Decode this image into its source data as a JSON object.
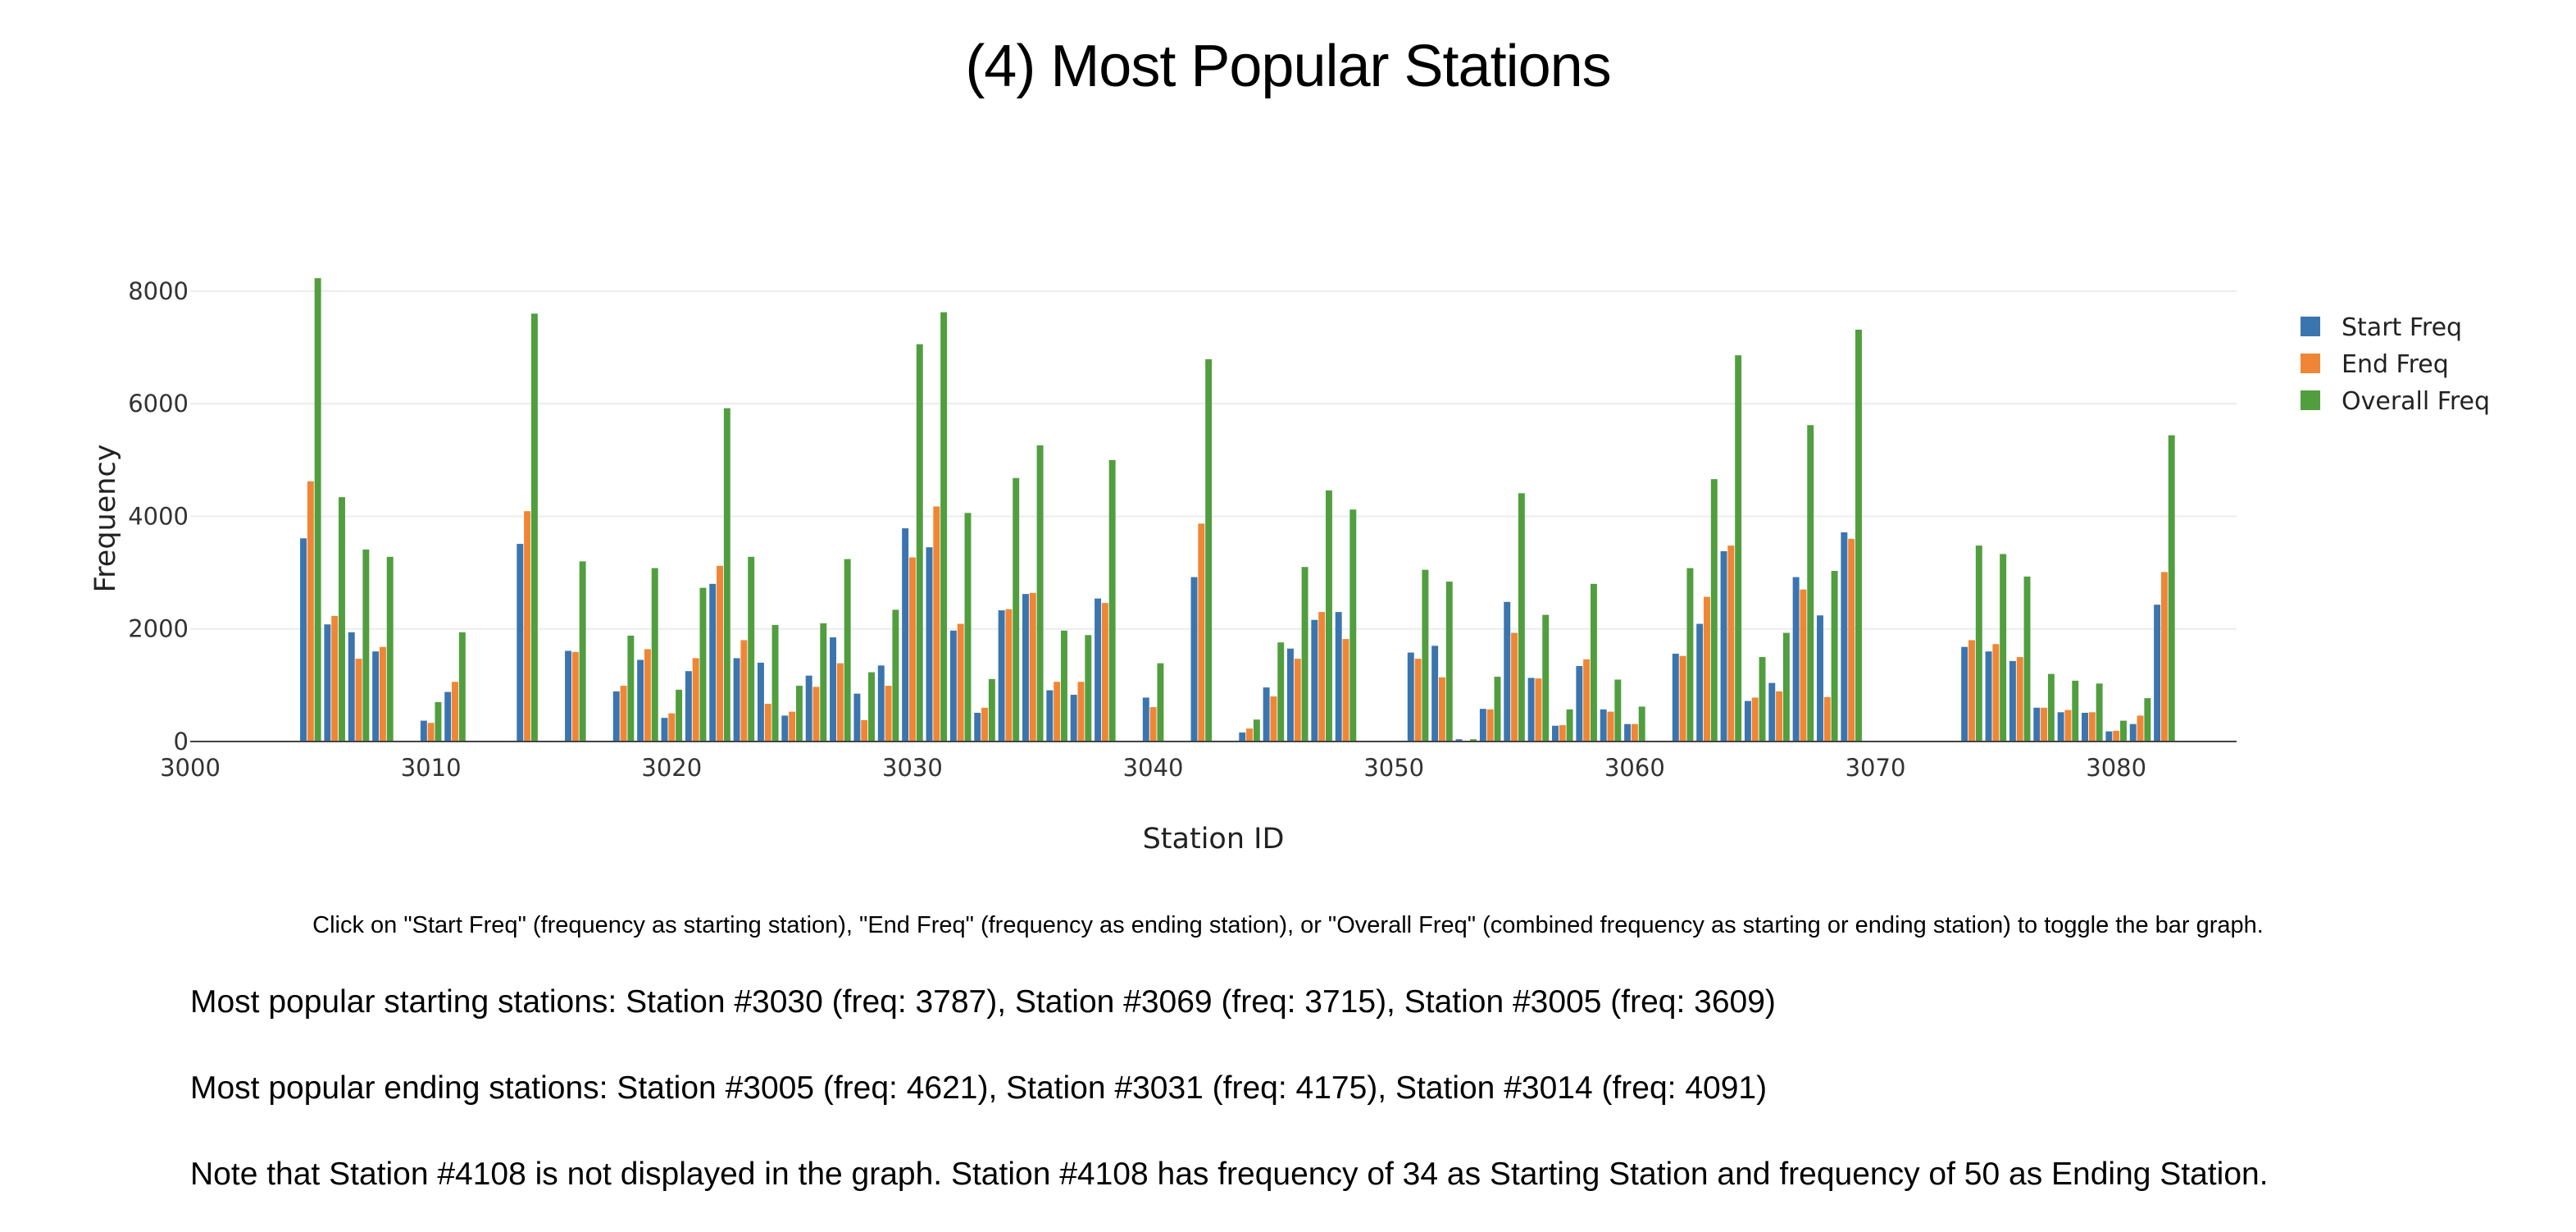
{
  "page": {
    "title": "(4) Most Popular Stations",
    "instruction": "Click on \"Start Freq\" (frequency as starting station), \"End Freq\" (frequency as ending station), or \"Overall Freq\" (combined frequency as starting or ending station) to toggle the bar graph.",
    "popular_start": "Most popular starting stations: Station #3030 (freq: 3787), Station #3069 (freq: 3715), Station #3005 (freq: 3609)",
    "popular_end": "Most popular ending stations: Station #3005 (freq: 4621), Station #3031 (freq: 4175), Station #3014 (freq: 4091)",
    "note": "Note that Station #4108 is not displayed in the graph. Station #4108 has frequency of 34 as Starting Station and frequency of 50 as Ending Station."
  },
  "chart_data": {
    "type": "bar",
    "title": "(4) Most Popular Stations",
    "xlabel": "Station ID",
    "ylabel": "Frequency",
    "xlim": [
      3000,
      3085
    ],
    "ylim": [
      0,
      8800
    ],
    "x_ticks": [
      "3000",
      "3010",
      "3020",
      "3030",
      "3040",
      "3050",
      "3060",
      "3070",
      "3080"
    ],
    "y_ticks": [
      "0",
      "2000",
      "4000",
      "6000",
      "8000"
    ],
    "grid": "horizontal",
    "legend_position": "top-right",
    "x": [
      3005,
      3006,
      3007,
      3008,
      3010,
      3011,
      3014,
      3016,
      3018,
      3019,
      3020,
      3021,
      3022,
      3023,
      3024,
      3025,
      3026,
      3027,
      3028,
      3029,
      3030,
      3031,
      3032,
      3033,
      3034,
      3035,
      3036,
      3037,
      3038,
      3040,
      3042,
      3044,
      3045,
      3046,
      3047,
      3048,
      3049,
      3051,
      3052,
      3053,
      3054,
      3055,
      3056,
      3057,
      3058,
      3059,
      3060,
      3062,
      3063,
      3064,
      3065,
      3066,
      3067,
      3068,
      3069,
      3074,
      3075,
      3076,
      3077,
      3078,
      3079,
      3080,
      3081,
      3082
    ],
    "series": [
      {
        "name": "Start Freq",
        "color": "#3b75af",
        "values": [
          3609,
          2080,
          1940,
          1600,
          370,
          880,
          3510,
          1610,
          890,
          1450,
          420,
          1250,
          2800,
          1480,
          1400,
          460,
          1170,
          1850,
          850,
          1350,
          3787,
          3450,
          1970,
          510,
          2330,
          2620,
          910,
          830,
          2540,
          780,
          2920,
          160,
          960,
          1650,
          2160,
          2300,
          0,
          1580,
          1700,
          40,
          580,
          2480,
          1130,
          280,
          1340,
          570,
          310,
          1560,
          2090,
          3380,
          720,
          1040,
          2920,
          2240,
          3715,
          1680,
          1600,
          1430,
          600,
          520,
          510,
          180,
          310,
          2430
        ]
      },
      {
        "name": "End Freq",
        "color": "#ef8636",
        "values": [
          4621,
          2230,
          1470,
          1680,
          330,
          1060,
          4091,
          1590,
          990,
          1640,
          500,
          1480,
          3120,
          1800,
          670,
          530,
          970,
          1390,
          380,
          990,
          3270,
          4175,
          2090,
          600,
          2350,
          2640,
          1060,
          1060,
          2460,
          610,
          3870,
          230,
          800,
          1470,
          2300,
          1820,
          0,
          1470,
          1140,
          0,
          570,
          1930,
          1120,
          290,
          1460,
          530,
          310,
          1520,
          2570,
          3480,
          780,
          890,
          2700,
          790,
          3600,
          1800,
          1730,
          1500,
          600,
          560,
          520,
          190,
          460,
          3010
        ]
      },
      {
        "name": "Overall Freq",
        "color": "#519e3e",
        "values": [
          8230,
          4340,
          3410,
          3280,
          700,
          1940,
          7600,
          3200,
          1880,
          3080,
          920,
          2730,
          5920,
          3280,
          2070,
          990,
          2100,
          3240,
          1230,
          2340,
          7057,
          7625,
          4060,
          1110,
          4680,
          5260,
          1970,
          1890,
          5000,
          1390,
          6790,
          390,
          1760,
          3100,
          4460,
          4120,
          0,
          3050,
          2840,
          40,
          1150,
          4410,
          2250,
          570,
          2800,
          1100,
          620,
          3080,
          4660,
          6860,
          1500,
          1930,
          5620,
          3030,
          7315,
          3480,
          3330,
          2930,
          1200,
          1080,
          1030,
          370,
          770,
          5440
        ]
      }
    ]
  }
}
